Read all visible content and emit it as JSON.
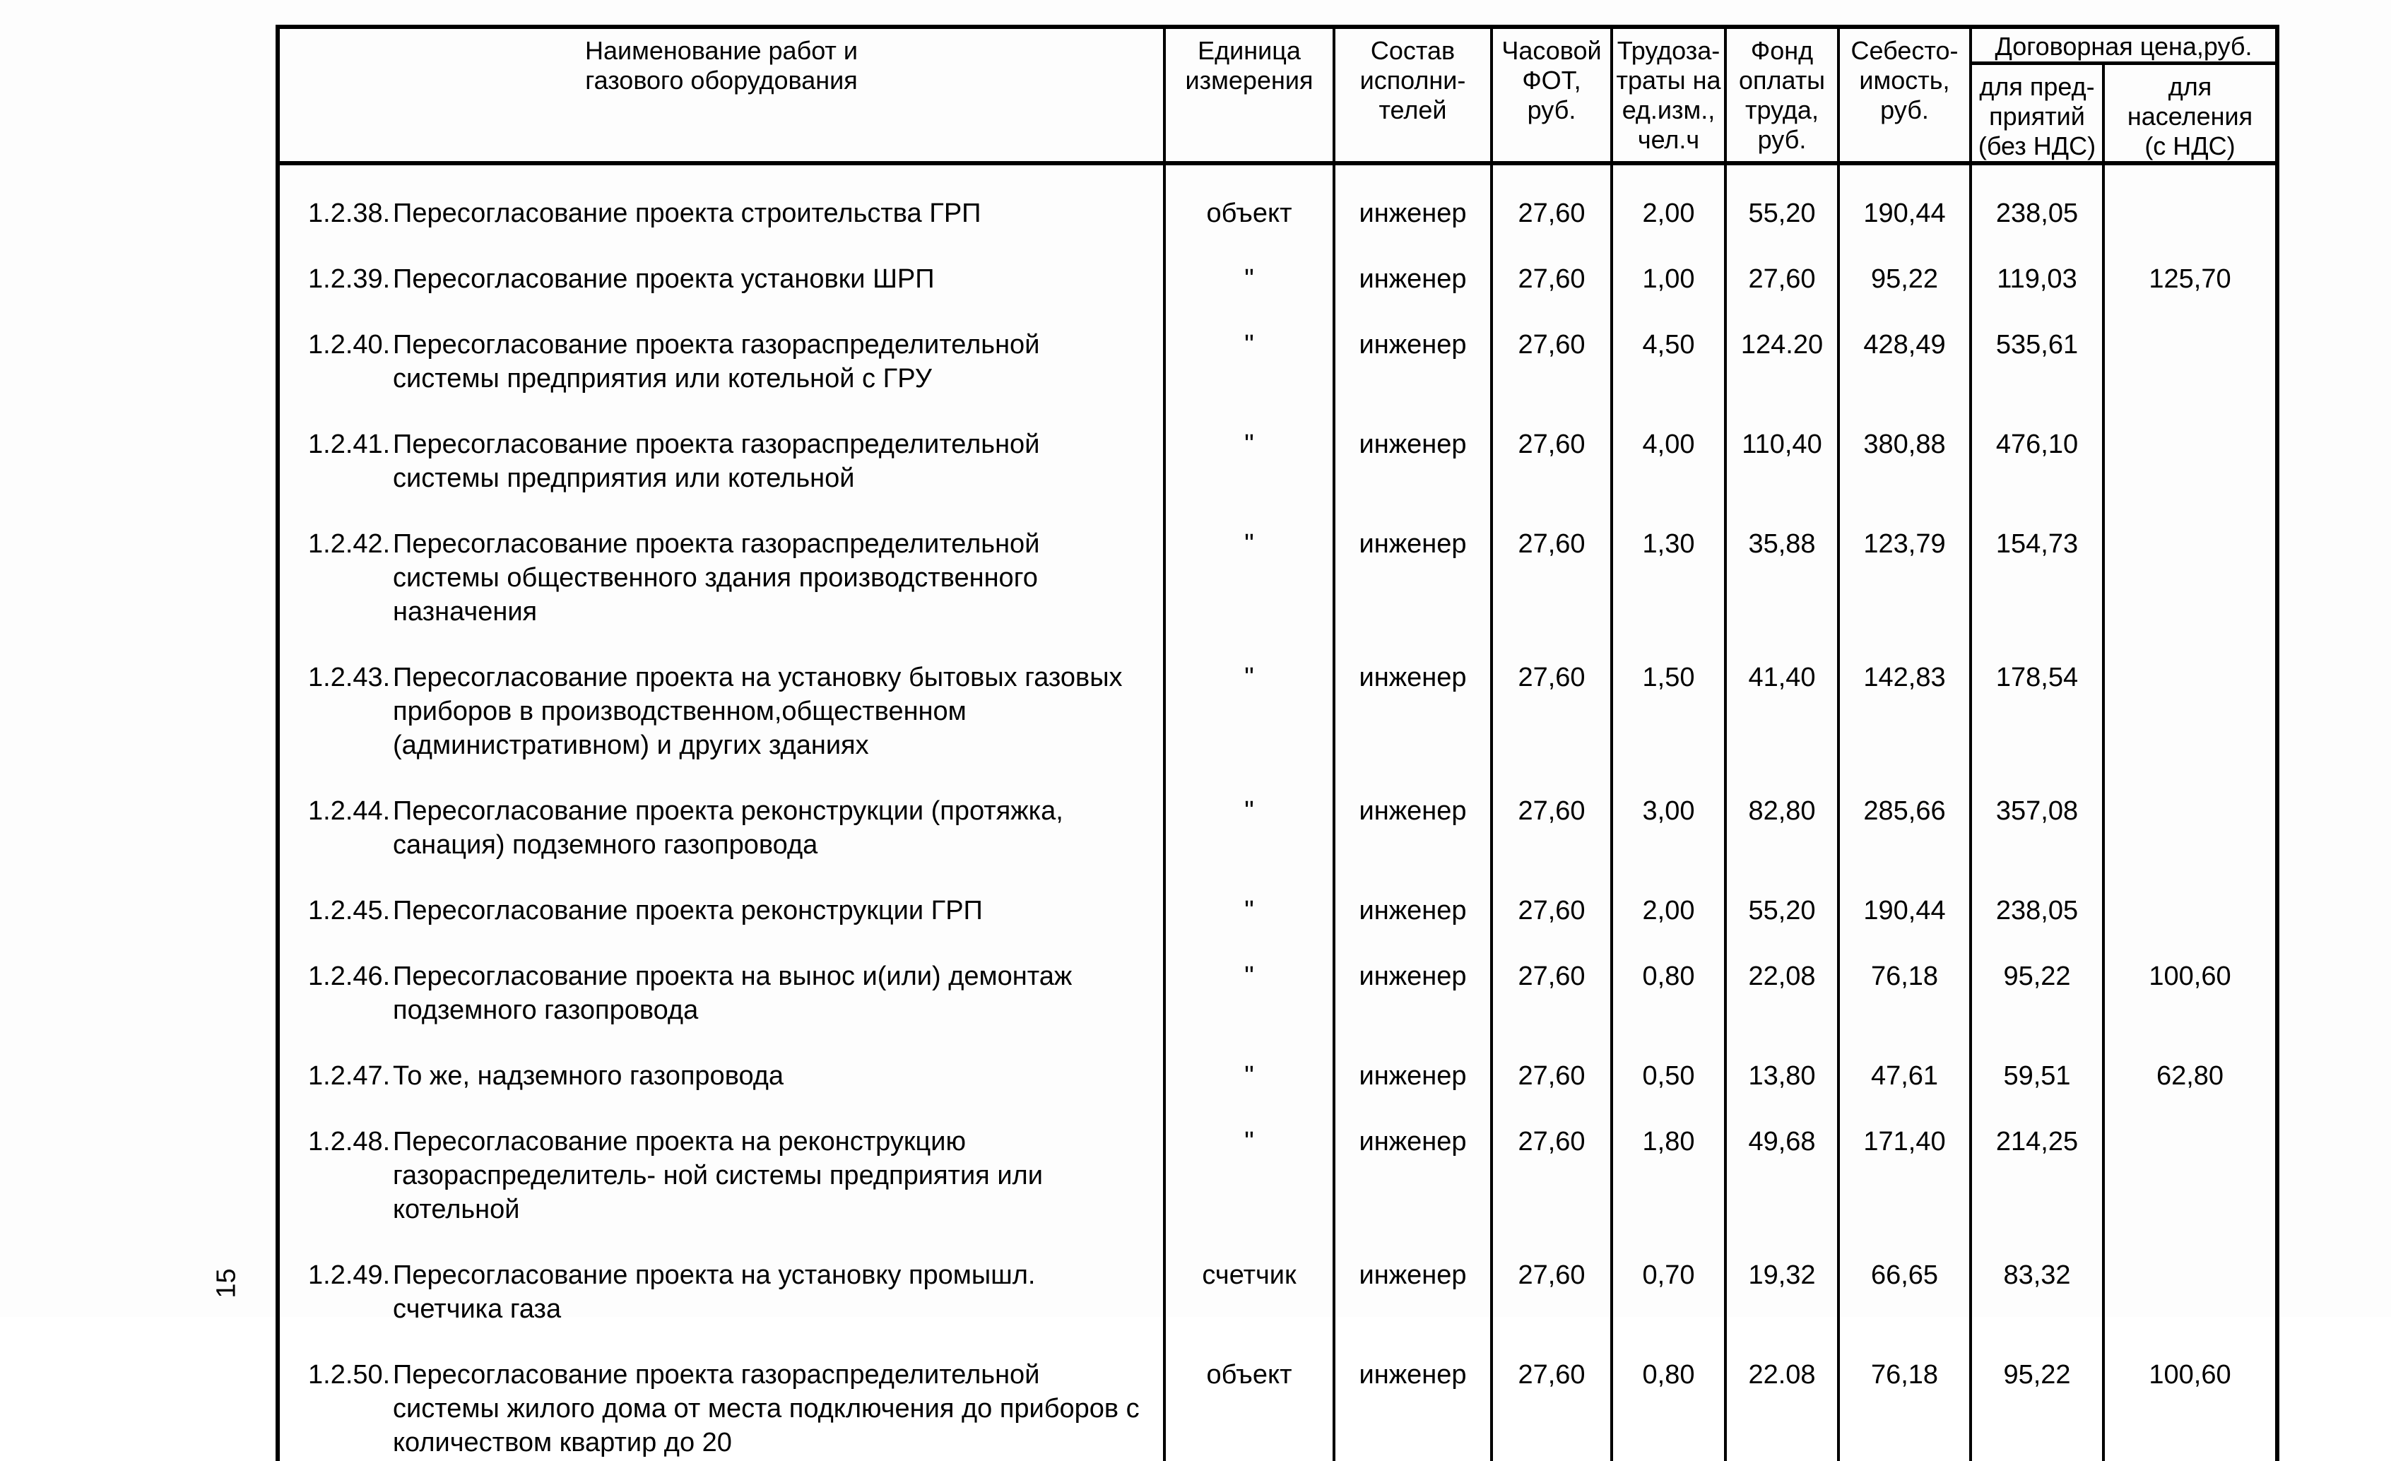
{
  "page_number": "15",
  "table": {
    "header": {
      "name": "Наименование работ и\nгазового оборудования",
      "unit": "Единица\nизмерения",
      "crew": "Состав\nисполни-\nтелей",
      "hourly_fot": "Часовой\nФОТ,\nруб.",
      "labor": "Трудоза-\nтраты на\nед.изм.,\nчел.ч",
      "wage_fund": "Фонд\nоплаты\nтруда,\nруб.",
      "cost": "Себесто-\nимость,\nруб.",
      "contract_price": "Договорная цена,руб.",
      "for_enterprises": "для пред-\nприятий\n(без НДС)",
      "for_population": "для\nнаселения\n(с НДС)"
    },
    "rows": [
      {
        "num": "1.2.38.",
        "name": "Пересогласование проекта строительства ГРП",
        "unit": "объект",
        "crew": "инженер",
        "hourly": "27,60",
        "labor": "2,00",
        "fund": "55,20",
        "cost": "190,44",
        "enterprise": "238,05",
        "population": ""
      },
      {
        "num": "1.2.39.",
        "name": "Пересогласование проекта установки ШРП",
        "unit": "\"",
        "crew": "инженер",
        "hourly": "27,60",
        "labor": "1,00",
        "fund": "27,60",
        "cost": "95,22",
        "enterprise": "119,03",
        "population": "125,70"
      },
      {
        "num": "1.2.40.",
        "name": "Пересогласование проекта газораспределительной системы предприятия или котельной с ГРУ",
        "unit": "\"",
        "crew": "инженер",
        "hourly": "27,60",
        "labor": "4,50",
        "fund": "124.20",
        "cost": "428,49",
        "enterprise": "535,61",
        "population": ""
      },
      {
        "num": "1.2.41.",
        "name": "Пересогласование проекта газораспределительной системы предприятия или котельной",
        "unit": "\"",
        "crew": "инженер",
        "hourly": "27,60",
        "labor": "4,00",
        "fund": "110,40",
        "cost": "380,88",
        "enterprise": "476,10",
        "population": ""
      },
      {
        "num": "1.2.42.",
        "name": "Пересогласование проекта газораспределительной системы общественного здания производственного назначения",
        "unit": "\"",
        "crew": "инженер",
        "hourly": "27,60",
        "labor": "1,30",
        "fund": "35,88",
        "cost": "123,79",
        "enterprise": "154,73",
        "population": ""
      },
      {
        "num": "1.2.43.",
        "name": "Пересогласование проекта на установку бытовых газовых приборов в производственном,общественном (административном) и других зданиях",
        "unit": "\"",
        "crew": "инженер",
        "hourly": "27,60",
        "labor": "1,50",
        "fund": "41,40",
        "cost": "142,83",
        "enterprise": "178,54",
        "population": ""
      },
      {
        "num": "1.2.44.",
        "name": "Пересогласование проекта реконструкции (протяжка, санация) подземного газопровода",
        "unit": "\"",
        "crew": "инженер",
        "hourly": "27,60",
        "labor": "3,00",
        "fund": "82,80",
        "cost": "285,66",
        "enterprise": "357,08",
        "population": ""
      },
      {
        "num": "1.2.45.",
        "name": "Пересогласование проекта реконструкции ГРП",
        "unit": "\"",
        "crew": "инженер",
        "hourly": "27,60",
        "labor": "2,00",
        "fund": "55,20",
        "cost": "190,44",
        "enterprise": "238,05",
        "population": ""
      },
      {
        "num": "1.2.46.",
        "name": "Пересогласование проекта на вынос и(или) демонтаж подземного газопровода",
        "unit": "\"",
        "crew": "инженер",
        "hourly": "27,60",
        "labor": "0,80",
        "fund": "22,08",
        "cost": "76,18",
        "enterprise": "95,22",
        "population": "100,60"
      },
      {
        "num": "1.2.47.",
        "name": "То же, надземного газопровода",
        "unit": "\"",
        "crew": "инженер",
        "hourly": "27,60",
        "labor": "0,50",
        "fund": "13,80",
        "cost": "47,61",
        "enterprise": "59,51",
        "population": "62,80"
      },
      {
        "num": "1.2.48.",
        "name": "Пересогласование проекта на реконструкцию газораспределитель- ной системы предприятия или котельной",
        "unit": "\"",
        "crew": "инженер",
        "hourly": "27,60",
        "labor": "1,80",
        "fund": "49,68",
        "cost": "171,40",
        "enterprise": "214,25",
        "population": ""
      },
      {
        "num": "1.2.49.",
        "name": "Пересогласование проекта на установку промышл. счетчика газа",
        "unit": "счетчик",
        "crew": "инженер",
        "hourly": "27,60",
        "labor": "0,70",
        "fund": "19,32",
        "cost": "66,65",
        "enterprise": "83,32",
        "population": ""
      },
      {
        "num": "1.2.50.",
        "name": "Пересогласование проекта газораспределительной системы жилого дома от места подключения до приборов с количеством квартир до 20",
        "unit": "объект",
        "crew": "инженер",
        "hourly": "27,60",
        "labor": "0,80",
        "fund": "22.08",
        "cost": "76,18",
        "enterprise": "95,22",
        "population": "100,60"
      }
    ]
  }
}
